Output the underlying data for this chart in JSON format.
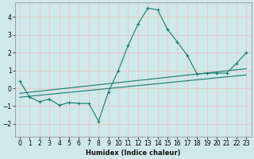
{
  "title": "",
  "xlabel": "Humidex (Indice chaleur)",
  "ylabel": "",
  "background_color": "#cfe8ea",
  "grid_color": "#e8c8c8",
  "line_color": "#1a7a6e",
  "xlim": [
    -0.5,
    23.5
  ],
  "ylim": [
    -2.7,
    4.8
  ],
  "xticks": [
    0,
    1,
    2,
    3,
    4,
    5,
    6,
    7,
    8,
    9,
    10,
    11,
    12,
    13,
    14,
    15,
    16,
    17,
    18,
    19,
    20,
    21,
    22,
    23
  ],
  "yticks": [
    -2,
    -1,
    0,
    1,
    2,
    3,
    4
  ],
  "curve1_x": [
    0,
    1,
    2,
    3,
    4,
    5,
    6,
    7,
    8,
    9,
    10,
    11,
    12,
    13,
    14,
    15,
    16,
    17,
    18,
    19,
    20,
    21,
    22,
    23
  ],
  "curve1_y": [
    0.4,
    -0.5,
    -0.75,
    -0.6,
    -0.95,
    -0.8,
    -0.85,
    -0.85,
    -1.85,
    -0.2,
    1.0,
    2.4,
    3.6,
    4.5,
    4.4,
    3.3,
    2.6,
    1.85,
    0.8,
    0.85,
    0.85,
    0.85,
    1.4,
    2.0
  ],
  "curve2_x": [
    0,
    23
  ],
  "curve2_y": [
    -0.28,
    1.1
  ],
  "curve3_x": [
    0,
    23
  ],
  "curve3_y": [
    -0.5,
    0.75
  ]
}
